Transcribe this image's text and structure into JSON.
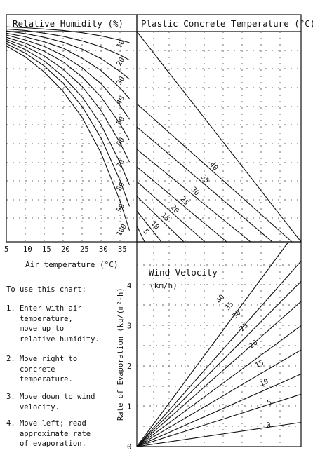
{
  "chart_data": {
    "type": "line",
    "panels": {
      "humidity": {
        "title": "Relative Humidity (%)",
        "xlabel": "Air temperature (°C)",
        "x_ticks": [
          "5",
          "10",
          "15",
          "20",
          "25",
          "30",
          "35"
        ],
        "xlim": [
          5,
          37.5
        ],
        "series": [
          {
            "name": "100",
            "values": [
              [
                5,
                43.0
              ],
              [
                10,
                40.6
              ],
              [
                15,
                37.3
              ],
              [
                20,
                33.0
              ],
              [
                25,
                27.3
              ],
              [
                30,
                19.5
              ],
              [
                35,
                9.0
              ],
              [
                37.5,
                2.5
              ]
            ]
          },
          {
            "name": "90",
            "values": [
              [
                5,
                43.5
              ],
              [
                10,
                41.4
              ],
              [
                15,
                38.6
              ],
              [
                20,
                34.8
              ],
              [
                25,
                29.7
              ],
              [
                30,
                22.8
              ],
              [
                35,
                13.5
              ],
              [
                37.5,
                7.8
              ]
            ]
          },
          {
            "name": "80",
            "values": [
              [
                5,
                44.0
              ],
              [
                10,
                42.2
              ],
              [
                15,
                39.7
              ],
              [
                20,
                36.3
              ],
              [
                25,
                31.8
              ],
              [
                30,
                25.7
              ],
              [
                35,
                17.4
              ],
              [
                37.5,
                12.5
              ]
            ]
          },
          {
            "name": "70",
            "values": [
              [
                5,
                44.4
              ],
              [
                10,
                42.9
              ],
              [
                15,
                40.8
              ],
              [
                20,
                37.9
              ],
              [
                25,
                34.1
              ],
              [
                30,
                28.8
              ],
              [
                35,
                21.8
              ],
              [
                37.5,
                17.5
              ]
            ]
          },
          {
            "name": "60",
            "values": [
              [
                5,
                44.9
              ],
              [
                10,
                43.6
              ],
              [
                15,
                41.8
              ],
              [
                20,
                39.5
              ],
              [
                25,
                36.2
              ],
              [
                30,
                31.8
              ],
              [
                35,
                25.9
              ],
              [
                37.5,
                22.3
              ]
            ]
          },
          {
            "name": "50",
            "values": [
              [
                5,
                45.4
              ],
              [
                10,
                44.3
              ],
              [
                15,
                42.9
              ],
              [
                20,
                40.9
              ],
              [
                25,
                38.2
              ],
              [
                30,
                34.7
              ],
              [
                35,
                29.9
              ],
              [
                37.5,
                26.9
              ]
            ]
          },
          {
            "name": "40",
            "values": [
              [
                5,
                45.8
              ],
              [
                10,
                45.0
              ],
              [
                15,
                43.9
              ],
              [
                20,
                42.5
              ],
              [
                25,
                40.3
              ],
              [
                30,
                37.6
              ],
              [
                35,
                33.8
              ],
              [
                37.5,
                31.4
              ]
            ]
          },
          {
            "name": "30",
            "values": [
              [
                5,
                46.3
              ],
              [
                10,
                45.7
              ],
              [
                15,
                44.9
              ],
              [
                20,
                43.8
              ],
              [
                25,
                42.3
              ],
              [
                30,
                40.2
              ],
              [
                35,
                37.4
              ],
              [
                37.5,
                35.7
              ]
            ]
          },
          {
            "name": "20",
            "values": [
              [
                5,
                46.7
              ],
              [
                10,
                46.4
              ],
              [
                15,
                45.8
              ],
              [
                20,
                45.1
              ],
              [
                25,
                44.1
              ],
              [
                30,
                42.8
              ],
              [
                35,
                41.0
              ],
              [
                37.5,
                39.9
              ]
            ]
          },
          {
            "name": "10",
            "values": [
              [
                5,
                47.2
              ],
              [
                10,
                47.0
              ],
              [
                15,
                46.7
              ],
              [
                20,
                46.4
              ],
              [
                25,
                45.9
              ],
              [
                30,
                45.2
              ],
              [
                35,
                44.3
              ],
              [
                37.5,
                43.7
              ]
            ]
          }
        ]
      },
      "concrete": {
        "title": "Plastic Concrete Temperature (°C)",
        "labels": [
          "5",
          "10",
          "15",
          "20",
          "25",
          "30",
          "35",
          "40"
        ]
      },
      "wind": {
        "title": "Wind Velocity",
        "subtitle": "(km/h)",
        "ylabel": "Rate of Evaporation (kg/(m²-h)",
        "y_ticks": [
          "0",
          "1",
          "2",
          "3",
          "4"
        ],
        "ylim": [
          0,
          4.8
        ],
        "series": [
          {
            "name": "0",
            "rate_at_right_edge": 0.6
          },
          {
            "name": "5",
            "rate_at_right_edge": 1.3
          },
          {
            "name": "10",
            "rate_at_right_edge": 1.8
          },
          {
            "name": "15",
            "rate_at_right_edge": 2.4
          },
          {
            "name": "20",
            "rate_at_right_edge": 3.0
          },
          {
            "name": "25",
            "rate_at_right_edge": 3.6
          },
          {
            "name": "30",
            "rate_at_right_edge": 4.1
          },
          {
            "name": "35",
            "rate_at_right_edge": 4.6
          },
          {
            "name": "40",
            "rate_at_right_edge": 5.5
          }
        ]
      }
    },
    "grid": true
  },
  "instructions": {
    "heading": "To use this chart:",
    "steps": [
      [
        "1. Enter with air",
        "   temperature,",
        "   move up to",
        "   relative humidity."
      ],
      [
        "2. Move right to",
        "   concrete",
        "   temperature."
      ],
      [
        "3. Move down to wind",
        "   velocity."
      ],
      [
        "4. Move left; read",
        "   approximate rate",
        "   of evaporation."
      ]
    ]
  }
}
